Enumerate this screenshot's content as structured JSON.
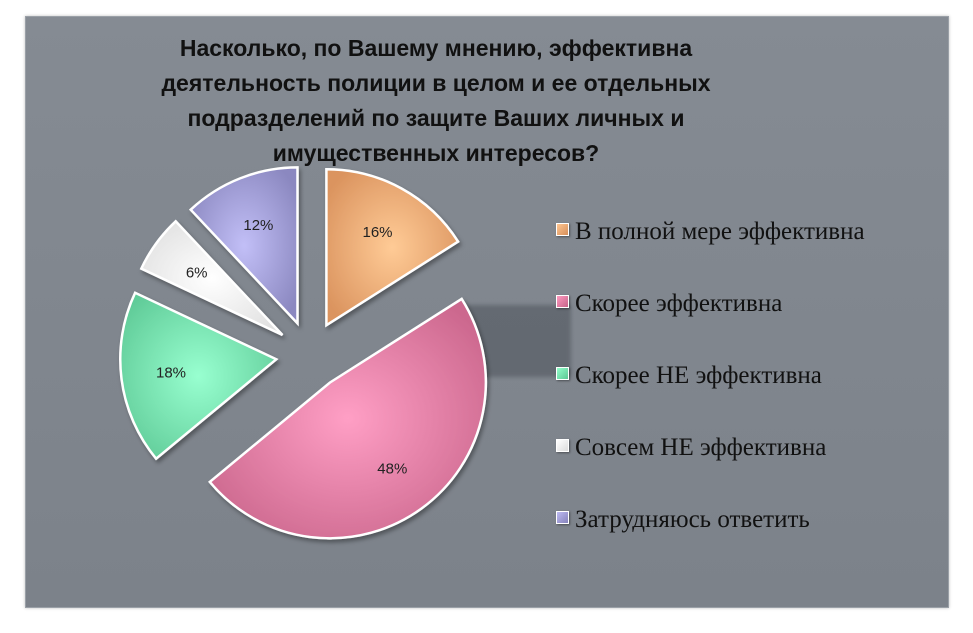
{
  "chart_data": {
    "type": "pie",
    "title": "Насколько, по Вашему мнению, эффективна деятельность полиции в целом и ее отдельных подразделений по защите Ваших личных и имущественных интересов?",
    "categories": [
      "В полной мере эффективна",
      "Скорее эффективна",
      "Скорее НЕ эффективна",
      "Совсем НЕ эффективна",
      "Затрудняюсь ответить"
    ],
    "values": [
      16,
      48,
      18,
      6,
      12
    ],
    "labels": [
      "16%",
      "48%",
      "18%",
      "6%",
      "12%"
    ],
    "colors": [
      "#f9b27d",
      "#ea86ac",
      "#7feab7",
      "#ffffff",
      "#a9a6de"
    ],
    "exploded": true,
    "legend_position": "right"
  }
}
